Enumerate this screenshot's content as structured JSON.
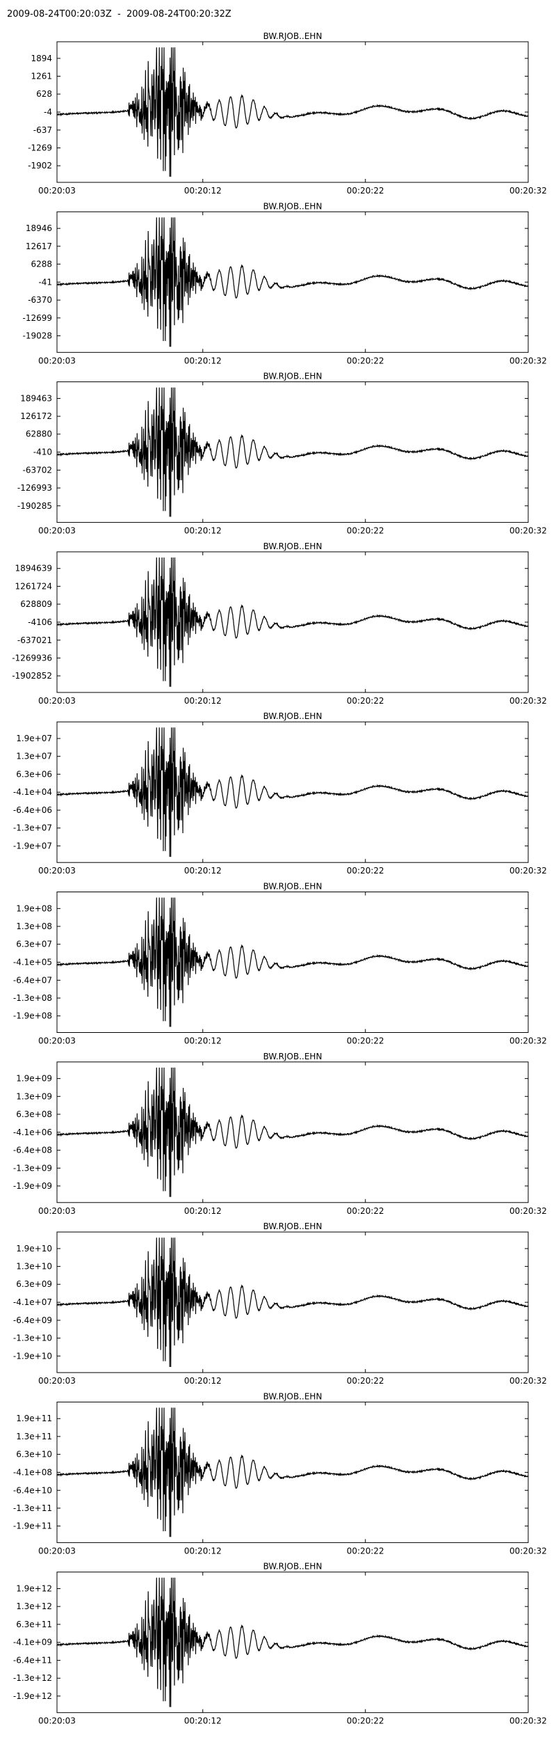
{
  "title": "2009-08-24T00:20:03Z  -  2009-08-24T00:20:32Z",
  "colors": {
    "trace": "#000000",
    "frame": "#000000",
    "background": "#ffffff"
  },
  "chart_data": {
    "type": "line",
    "x_tick_labels": [
      "00:20:03",
      "00:20:12",
      "00:20:22",
      "00:20:32"
    ],
    "x_range": [
      "00:20:03",
      "00:20:32"
    ],
    "grid": false,
    "panels": [
      {
        "name": "BW.RJOB..EHN",
        "y_tick_labels": [
          "1894",
          "1261",
          "628",
          "-4",
          "-637",
          "-1269",
          "-1902"
        ]
      },
      {
        "name": "BW.RJOB..EHN",
        "y_tick_labels": [
          "18946",
          "12617",
          "6288",
          "-41",
          "-6370",
          "-12699",
          "-19028"
        ]
      },
      {
        "name": "BW.RJOB..EHN",
        "y_tick_labels": [
          "189463",
          "126172",
          "62880",
          "-410",
          "-63702",
          "-126993",
          "-190285"
        ]
      },
      {
        "name": "BW.RJOB..EHN",
        "y_tick_labels": [
          "1894639",
          "1261724",
          "628809",
          "-4106",
          "-637021",
          "-1269936",
          "-1902852"
        ]
      },
      {
        "name": "BW.RJOB..EHN",
        "y_tick_labels": [
          "1.9e+07",
          "1.3e+07",
          "6.3e+06",
          "-4.1e+04",
          "-6.4e+06",
          "-1.3e+07",
          "-1.9e+07"
        ]
      },
      {
        "name": "BW.RJOB..EHN",
        "y_tick_labels": [
          "1.9e+08",
          "1.3e+08",
          "6.3e+07",
          "-4.1e+05",
          "-6.4e+07",
          "-1.3e+08",
          "-1.9e+08"
        ]
      },
      {
        "name": "BW.RJOB..EHN",
        "y_tick_labels": [
          "1.9e+09",
          "1.3e+09",
          "6.3e+08",
          "-4.1e+06",
          "-6.4e+08",
          "-1.3e+09",
          "-1.9e+09"
        ]
      },
      {
        "name": "BW.RJOB..EHN",
        "y_tick_labels": [
          "1.9e+10",
          "1.3e+10",
          "6.3e+09",
          "-4.1e+07",
          "-6.4e+09",
          "-1.3e+10",
          "-1.9e+10"
        ]
      },
      {
        "name": "BW.RJOB..EHN",
        "y_tick_labels": [
          "1.9e+11",
          "1.3e+11",
          "6.3e+10",
          "-4.1e+08",
          "-6.4e+10",
          "-1.3e+11",
          "-1.9e+11"
        ]
      },
      {
        "name": "BW.RJOB..EHN",
        "y_tick_labels": [
          "1.9e+12",
          "1.3e+12",
          "6.3e+11",
          "-4.1e+09",
          "-6.4e+11",
          "-1.3e+12",
          "-1.9e+12"
        ]
      }
    ]
  }
}
